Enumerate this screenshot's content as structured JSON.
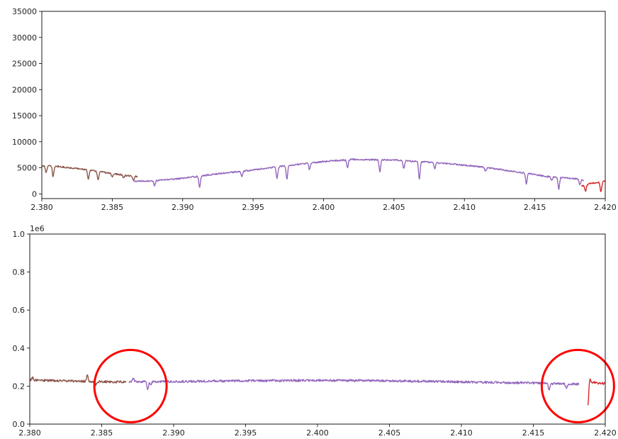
{
  "chart_data": [
    {
      "type": "line",
      "title": "",
      "xlabel": "",
      "ylabel": "",
      "xlim": [
        2.38,
        2.42
      ],
      "ylim": [
        -900,
        35000
      ],
      "x_ticks": [
        "2.380",
        "2.385",
        "2.390",
        "2.395",
        "2.400",
        "2.405",
        "2.410",
        "2.415",
        "2.420"
      ],
      "y_ticks": [
        "0",
        "5000",
        "10000",
        "15000",
        "20000",
        "25000",
        "30000",
        "35000"
      ],
      "grid": false,
      "series": [
        {
          "color": "#8c564b",
          "x": [
            2.38,
            2.381,
            2.382,
            2.383,
            2.384,
            2.385,
            2.386,
            2.3868
          ],
          "y": [
            5400,
            5300,
            5000,
            4700,
            4300,
            3900,
            3500,
            3300
          ],
          "dips": [
            [
              2.3803,
              4100
            ],
            [
              2.3808,
              3300
            ],
            [
              2.3833,
              2900
            ],
            [
              2.384,
              2700
            ],
            [
              2.385,
              3300
            ],
            [
              2.3858,
              3100
            ],
            [
              2.3865,
              2600
            ]
          ]
        },
        {
          "color": "#9467bd",
          "x": [
            2.3865,
            2.388,
            2.39,
            2.392,
            2.395,
            2.398,
            2.4,
            2.402,
            2.405,
            2.408,
            2.41,
            2.412,
            2.414,
            2.416,
            2.418,
            2.4185
          ],
          "y": [
            2400,
            2500,
            3000,
            3700,
            4600,
            5600,
            6200,
            6600,
            6500,
            6000,
            5500,
            4900,
            4100,
            3300,
            2900,
            2600
          ],
          "dips": [
            [
              2.388,
              1500
            ],
            [
              2.3912,
              1200
            ],
            [
              2.3942,
              3400
            ],
            [
              2.3967,
              3000
            ],
            [
              2.3974,
              2800
            ],
            [
              2.399,
              4700
            ],
            [
              2.4017,
              5100
            ],
            [
              2.404,
              4200
            ],
            [
              2.4057,
              4900
            ],
            [
              2.4068,
              2900
            ],
            [
              2.4079,
              4800
            ],
            [
              2.4115,
              4400
            ],
            [
              2.4144,
              2000
            ],
            [
              2.4162,
              2600
            ],
            [
              2.4167,
              900
            ],
            [
              2.4182,
              1800
            ]
          ]
        },
        {
          "color": "#d62728",
          "x": [
            2.4183,
            2.419,
            2.42,
            2.421
          ],
          "y": [
            1500,
            2000,
            2400,
            2600
          ],
          "dips": [
            [
              2.4186,
              500
            ],
            [
              2.4197,
              400
            ],
            [
              2.4204,
              1200
            ]
          ]
        }
      ]
    },
    {
      "type": "line",
      "title": "",
      "xlabel": "",
      "ylabel": "",
      "y_offset_label": "1e6",
      "xlim": [
        2.38,
        2.42
      ],
      "ylim": [
        0,
        1.0
      ],
      "x_ticks": [
        "2.380",
        "2.385",
        "2.390",
        "2.395",
        "2.400",
        "2.405",
        "2.410",
        "2.415",
        "2.420"
      ],
      "y_ticks": [
        "0.0",
        "0.2",
        "0.4",
        "0.6",
        "0.8",
        "1.0"
      ],
      "grid": false,
      "series": [
        {
          "color": "#8c564b",
          "x": [
            2.38,
            2.382,
            2.384,
            2.386,
            2.3867
          ],
          "y": [
            0.232,
            0.228,
            0.225,
            0.222,
            0.222
          ],
          "spikes": [
            [
              2.3802,
              0.245
            ],
            [
              2.384,
              0.26
            ],
            [
              2.3846,
              0.205
            ]
          ]
        },
        {
          "color": "#9467bd",
          "x": [
            2.3869,
            2.39,
            2.395,
            2.4,
            2.405,
            2.41,
            2.415,
            2.4182
          ],
          "y": [
            0.222,
            0.224,
            0.228,
            0.23,
            0.228,
            0.222,
            0.216,
            0.21
          ],
          "spikes": [
            [
              2.3872,
              0.24
            ],
            [
              2.3882,
              0.185
            ],
            [
              2.3884,
              0.205
            ],
            [
              2.4161,
              0.18
            ],
            [
              2.4173,
              0.19
            ]
          ]
        },
        {
          "color": "#d62728",
          "x": [
            2.4188,
            2.4195,
            2.4205,
            2.4212
          ],
          "y": [
            0.225,
            0.215,
            0.212,
            0.22
          ],
          "spikes": [
            [
              2.4188,
              0.1
            ],
            [
              2.4189,
              0.245
            ]
          ]
        }
      ],
      "annotations": [
        {
          "shape": "circle",
          "color": "#ff0000",
          "center_x": 2.387,
          "center_y": 0.2
        },
        {
          "shape": "circle",
          "color": "#ff0000",
          "center_x": 2.4181,
          "center_y": 0.2
        }
      ]
    }
  ]
}
